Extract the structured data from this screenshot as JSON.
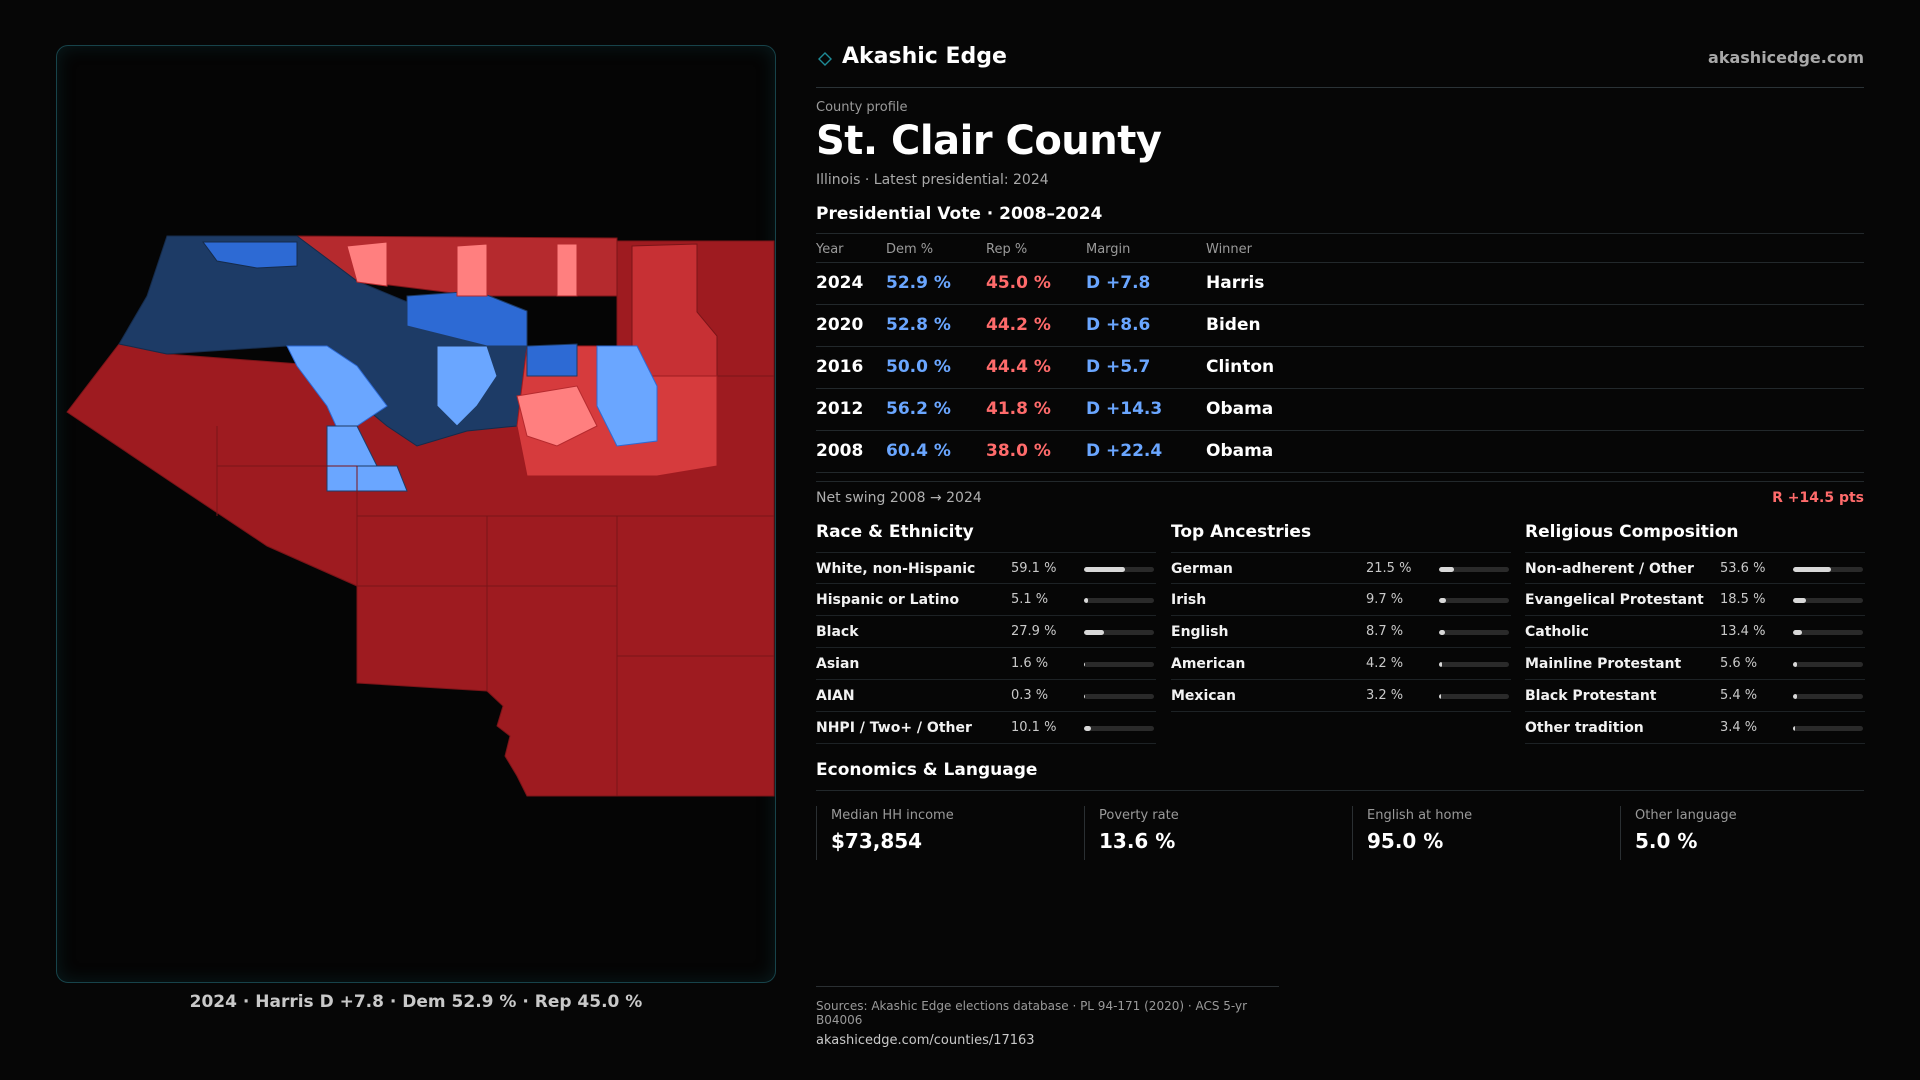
{
  "brand": {
    "name": "Akashic Edge",
    "url": "akashicedge.com",
    "icon": "diamond-icon",
    "accent": "#1e8a96"
  },
  "profile": {
    "eyebrow": "County profile",
    "title": "St. Clair County",
    "subtitle": "Illinois · Latest presidential: 2024"
  },
  "map": {
    "caption": "2024 · Harris D +7.8 · Dem 52.9 % · Rep 45.0 %"
  },
  "presidential": {
    "title": "Presidential Vote · 2008–2024",
    "headers": {
      "year": "Year",
      "dem": "Dem %",
      "rep": "Rep %",
      "margin": "Margin",
      "winner": "Winner"
    },
    "rows": [
      {
        "year": "2024",
        "dem": "52.9 %",
        "rep": "45.0 %",
        "margin": "D +7.8",
        "winner": "Harris"
      },
      {
        "year": "2020",
        "dem": "52.8 %",
        "rep": "44.2 %",
        "margin": "D +8.6",
        "winner": "Biden"
      },
      {
        "year": "2016",
        "dem": "50.0 %",
        "rep": "44.4 %",
        "margin": "D +5.7",
        "winner": "Clinton"
      },
      {
        "year": "2012",
        "dem": "56.2 %",
        "rep": "41.8 %",
        "margin": "D +14.3",
        "winner": "Obama"
      },
      {
        "year": "2008",
        "dem": "60.4 %",
        "rep": "38.0 %",
        "margin": "D +22.4",
        "winner": "Obama"
      }
    ],
    "swing_label": "Net swing 2008 → 2024",
    "swing_value": "R +14.5 pts"
  },
  "race": {
    "title": "Race & Ethnicity",
    "items": [
      {
        "label": "White, non-Hispanic",
        "value": "59.1 %",
        "pct": 59.1
      },
      {
        "label": "Hispanic or Latino",
        "value": "5.1 %",
        "pct": 5.1
      },
      {
        "label": "Black",
        "value": "27.9 %",
        "pct": 27.9
      },
      {
        "label": "Asian",
        "value": "1.6 %",
        "pct": 1.6
      },
      {
        "label": "AIAN",
        "value": "0.3 %",
        "pct": 0.3
      },
      {
        "label": "NHPI / Two+ / Other",
        "value": "10.1 %",
        "pct": 10.1
      }
    ]
  },
  "ancestry": {
    "title": "Top Ancestries",
    "items": [
      {
        "label": "German",
        "value": "21.5 %",
        "pct": 21.5
      },
      {
        "label": "Irish",
        "value": "9.7 %",
        "pct": 9.7
      },
      {
        "label": "English",
        "value": "8.7 %",
        "pct": 8.7
      },
      {
        "label": "American",
        "value": "4.2 %",
        "pct": 4.2
      },
      {
        "label": "Mexican",
        "value": "3.2 %",
        "pct": 3.2
      }
    ]
  },
  "religion": {
    "title": "Religious Composition",
    "items": [
      {
        "label": "Non-adherent / Other",
        "value": "53.6 %",
        "pct": 53.6
      },
      {
        "label": "Evangelical Protestant",
        "value": "18.5 %",
        "pct": 18.5
      },
      {
        "label": "Catholic",
        "value": "13.4 %",
        "pct": 13.4
      },
      {
        "label": "Mainline Protestant",
        "value": "5.6 %",
        "pct": 5.6
      },
      {
        "label": "Black Protestant",
        "value": "5.4 %",
        "pct": 5.4
      },
      {
        "label": "Other tradition",
        "value": "3.4 %",
        "pct": 3.4
      }
    ]
  },
  "economics": {
    "title": "Economics & Language",
    "items": [
      {
        "label": "Median HH income",
        "value": "$73,854"
      },
      {
        "label": "Poverty rate",
        "value": "13.6 %"
      },
      {
        "label": "English at home",
        "value": "95.0 %"
      },
      {
        "label": "Other language",
        "value": "5.0 %"
      }
    ]
  },
  "sources": {
    "line": "Sources: Akashic Edge elections database · PL 94-171 (2020) · ACS 5-yr B04006",
    "url": "akashicedge.com/counties/17163"
  },
  "colors": {
    "dem": "#6aa6ff",
    "rep": "#ff6b6b",
    "map_dem_dark": "#1d3b66",
    "map_dem_mid": "#2d6ad4",
    "map_dem_light": "#6aa6ff",
    "map_rep_dark": "#9e1b20",
    "map_rep_mid": "#d63b3d",
    "map_rep_light": "#ff7f7f"
  }
}
